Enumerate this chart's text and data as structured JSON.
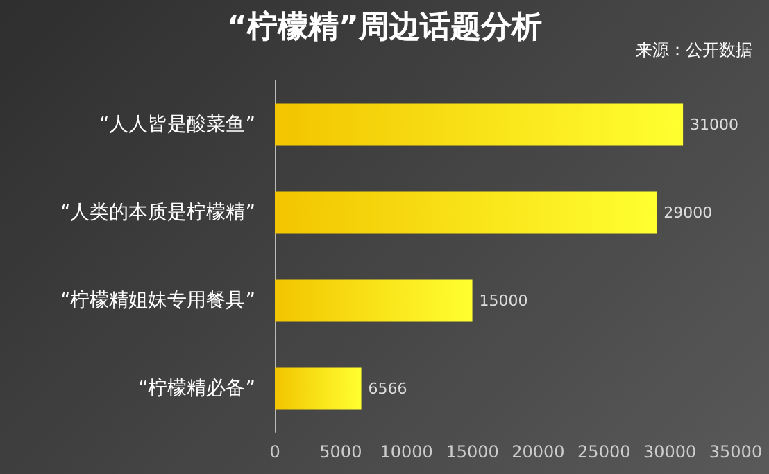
{
  "chart_data": {
    "type": "bar",
    "orientation": "horizontal",
    "title": "“柠檬精”周边话题分析",
    "annotations": [
      "来源：公开数据"
    ],
    "categories": [
      "“人人皆是酸菜鱼”",
      "“人类的本质是柠檬精”",
      "“柠檬精姐妹专用餐具”",
      "“柠檬精必备”"
    ],
    "values": [
      31000,
      29000,
      15000,
      6566
    ],
    "color": "#f2c500",
    "xlim": [
      0,
      35000
    ],
    "xticks": [
      0,
      5000,
      10000,
      15000,
      20000,
      25000,
      30000,
      35000
    ],
    "data_labels": true
  }
}
